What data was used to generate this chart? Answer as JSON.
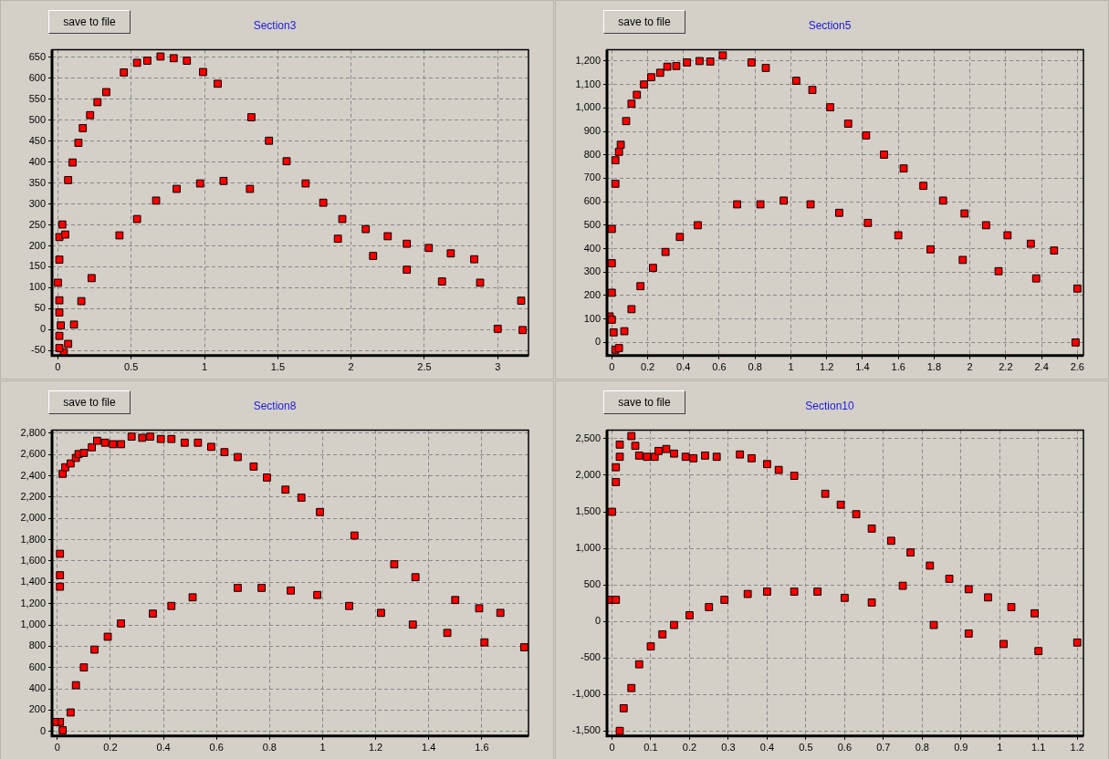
{
  "chart_data": [
    {
      "type": "scatter",
      "title": "Section3",
      "annotations": [
        "save to file"
      ],
      "color": "#ff0000",
      "marker": "square",
      "grid": true,
      "x": [
        0.45,
        0.54,
        0.61,
        0.7,
        0.79,
        0.88,
        0.99,
        1.09,
        1.32,
        1.44,
        1.56,
        1.69,
        1.81,
        1.94,
        1.91,
        1.31,
        1.13,
        0.97,
        0.81,
        0.67,
        0.54,
        0.42,
        0.23,
        0.16,
        0.11,
        0.07,
        0.04,
        0.01,
        0.01,
        0.02,
        0.01,
        0.01,
        0.0,
        0.01,
        0.01,
        0.03,
        0.05,
        0.07,
        0.1,
        0.14,
        0.17,
        0.22,
        0.27,
        0.33,
        2.1,
        2.15,
        2.25,
        2.38,
        2.38,
        2.53,
        2.62,
        2.68,
        2.84,
        2.88,
        3.0,
        3.16,
        3.17
      ],
      "values": [
        614,
        637,
        642,
        652,
        648,
        642,
        615,
        587,
        507,
        451,
        402,
        349,
        303,
        264,
        217,
        336,
        355,
        349,
        336,
        308,
        264,
        225,
        123,
        68,
        12,
        -34,
        -54,
        -15,
        -44,
        10,
        41,
        70,
        112,
        167,
        221,
        251,
        227,
        357,
        399,
        446,
        481,
        512,
        543,
        567,
        240,
        176,
        223,
        205,
        143,
        195,
        115,
        182,
        168,
        112,
        2,
        69,
        -1
      ],
      "xlim": [
        -0.04,
        3.21
      ],
      "ylim": [
        -62,
        668
      ],
      "xticks": [
        0,
        0.5,
        1,
        1.5,
        2,
        2.5,
        3
      ],
      "yticks": [
        -50,
        0,
        50,
        100,
        150,
        200,
        250,
        300,
        350,
        400,
        450,
        500,
        550,
        600,
        650
      ]
    },
    {
      "type": "scatter",
      "title": "Section5",
      "annotations": [
        "save to file"
      ],
      "color": "#ff0000",
      "marker": "square",
      "grid": true,
      "x": [
        0.0,
        0.0,
        0.0,
        -0.012,
        0.0,
        0.01,
        0.02,
        0.04,
        0.07,
        0.11,
        0.16,
        0.23,
        0.3,
        0.38,
        0.48,
        0.7,
        0.83,
        0.96,
        1.11,
        1.27,
        1.43,
        1.6,
        1.78,
        1.96,
        2.16,
        2.37,
        2.59,
        2.6,
        2.47,
        2.34,
        2.21,
        2.09,
        1.97,
        1.85,
        1.74,
        1.63,
        1.52,
        1.42,
        1.32,
        1.22,
        1.12,
        1.03,
        0.86,
        0.78,
        0.62,
        0.55,
        0.49,
        0.42,
        0.36,
        0.31,
        0.27,
        0.22,
        0.18,
        0.14,
        0.11,
        0.08,
        0.05,
        0.04,
        0.02,
        0.02
      ],
      "values": [
        484,
        338,
        212,
        111,
        97,
        43,
        -31,
        -24,
        48,
        142,
        240,
        318,
        386,
        450,
        500,
        589,
        589,
        605,
        589,
        553,
        510,
        457,
        397,
        352,
        304,
        273,
        0,
        230,
        392,
        421,
        457,
        500,
        550,
        605,
        668,
        742,
        801,
        883,
        933,
        1003,
        1077,
        1116,
        1171,
        1194,
        1224,
        1198,
        1200,
        1194,
        1179,
        1176,
        1150,
        1131,
        1100,
        1056,
        1018,
        944,
        843,
        813,
        777,
        677
      ],
      "xlim": [
        -0.027,
        2.634
      ],
      "ylim": [
        -56,
        1248
      ],
      "xticks": [
        0,
        0.2,
        0.4,
        0.6,
        0.8,
        1,
        1.2,
        1.4,
        1.6,
        1.8,
        2,
        2.2,
        2.4,
        2.6
      ],
      "yticks": [
        0,
        100,
        200,
        300,
        400,
        500,
        600,
        700,
        800,
        900,
        {
          "value": 1000,
          "label": "1,000"
        },
        {
          "value": 1100,
          "label": "1,100"
        },
        {
          "value": 1200,
          "label": "1,200"
        }
      ]
    },
    {
      "type": "scatter",
      "title": "Section8",
      "annotations": [
        "save to file"
      ],
      "color": "#ff0000",
      "marker": "square",
      "grid": true,
      "x": [
        0.02,
        0.03,
        0.05,
        0.07,
        0.08,
        0.1,
        0.13,
        0.15,
        0.18,
        0.21,
        0.24,
        0.28,
        0.32,
        0.35,
        0.39,
        0.43,
        0.48,
        0.53,
        0.58,
        0.63,
        0.68,
        0.74,
        0.79,
        0.86,
        0.92,
        0.99,
        1.12,
        1.27,
        1.35,
        1.5,
        1.59,
        1.67,
        1.76,
        1.61,
        1.47,
        1.34,
        1.22,
        1.1,
        0.98,
        0.88,
        0.77,
        0.68,
        0.51,
        0.43,
        0.36,
        0.24,
        0.19,
        0.14,
        0.1,
        0.07,
        0.05,
        0.02,
        0.01,
        -0.01,
        0.01,
        0.01,
        0.01
      ],
      "values": [
        2419,
        2480,
        2516,
        2568,
        2604,
        2615,
        2668,
        2729,
        2711,
        2697,
        2697,
        2768,
        2757,
        2768,
        2746,
        2746,
        2711,
        2711,
        2672,
        2622,
        2576,
        2487,
        2384,
        2270,
        2195,
        2060,
        1839,
        1569,
        1448,
        1234,
        1156,
        1113,
        790,
        836,
        925,
        1003,
        1113,
        1178,
        1281,
        1323,
        1348,
        1348,
        1259,
        1178,
        1106,
        1014,
        889,
        768,
        601,
        434,
        178,
        11,
        89,
        89,
        1359,
        1466,
        1668
      ],
      "xlim": [
        -0.02,
        1.776
      ],
      "ylim": [
        -43,
        2828
      ],
      "xticks": [
        0,
        0.2,
        0.4,
        0.6,
        0.8,
        1,
        1.2,
        1.4,
        1.6
      ],
      "yticks": [
        0,
        200,
        400,
        600,
        800,
        {
          "value": 1000,
          "label": "1,000"
        },
        {
          "value": 1200,
          "label": "1,200"
        },
        {
          "value": 1400,
          "label": "1,400"
        },
        {
          "value": 1600,
          "label": "1,600"
        },
        {
          "value": 1800,
          "label": "1,800"
        },
        {
          "value": 2000,
          "label": "2,000"
        },
        {
          "value": 2200,
          "label": "2,200"
        },
        {
          "value": 2400,
          "label": "2,400"
        },
        {
          "value": 2600,
          "label": "2,600"
        },
        {
          "value": 2800,
          "label": "2,800"
        }
      ]
    },
    {
      "type": "scatter",
      "title": "Section10",
      "annotations": [
        "save to file"
      ],
      "color": "#ff0000",
      "marker": "square",
      "grid": true,
      "x": [
        -0.008,
        0.01,
        0.0,
        0.01,
        0.01,
        0.02,
        0.02,
        0.05,
        0.06,
        0.07,
        0.09,
        0.11,
        0.12,
        0.14,
        0.16,
        0.19,
        0.21,
        0.24,
        0.27,
        0.33,
        0.36,
        0.4,
        0.43,
        0.47,
        0.55,
        0.59,
        0.63,
        0.67,
        0.72,
        0.77,
        0.82,
        0.87,
        0.92,
        0.97,
        1.03,
        1.09,
        1.2,
        1.1,
        1.01,
        0.92,
        0.83,
        0.75,
        0.67,
        0.6,
        0.53,
        0.47,
        0.4,
        0.35,
        0.29,
        0.25,
        0.2,
        0.16,
        0.13,
        0.1,
        0.07,
        0.05,
        0.03,
        0.02
      ],
      "values": [
        295,
        295,
        1500,
        1907,
        2110,
        2253,
        2420,
        2537,
        2403,
        2270,
        2253,
        2253,
        2333,
        2360,
        2297,
        2253,
        2233,
        2270,
        2253,
        2285,
        2233,
        2153,
        2073,
        1993,
        1747,
        1597,
        1467,
        1270,
        1103,
        943,
        763,
        583,
        440,
        328,
        195,
        110,
        -290,
        -407,
        -310,
        -167,
        -50,
        487,
        258,
        322,
        407,
        407,
        407,
        375,
        295,
        195,
        83,
        -50,
        -178,
        -343,
        -588,
        -913,
        -1190,
        -1500
      ],
      "xlim": [
        -0.013,
        1.216
      ],
      "ylim": [
        -1570,
        2617
      ],
      "xticks": [
        0,
        0.1,
        0.2,
        0.3,
        0.4,
        0.5,
        0.6,
        0.7,
        0.8,
        0.9,
        1,
        1.1,
        1.2
      ],
      "yticks": [
        {
          "value": -1500,
          "label": "-1,500"
        },
        {
          "value": -1000,
          "label": "-1,000"
        },
        -500,
        0,
        500,
        {
          "value": 1000,
          "label": "1,000"
        },
        {
          "value": 1500,
          "label": "1,500"
        },
        {
          "value": 2000,
          "label": "2,000"
        },
        {
          "value": 2500,
          "label": "2,500"
        }
      ]
    }
  ]
}
